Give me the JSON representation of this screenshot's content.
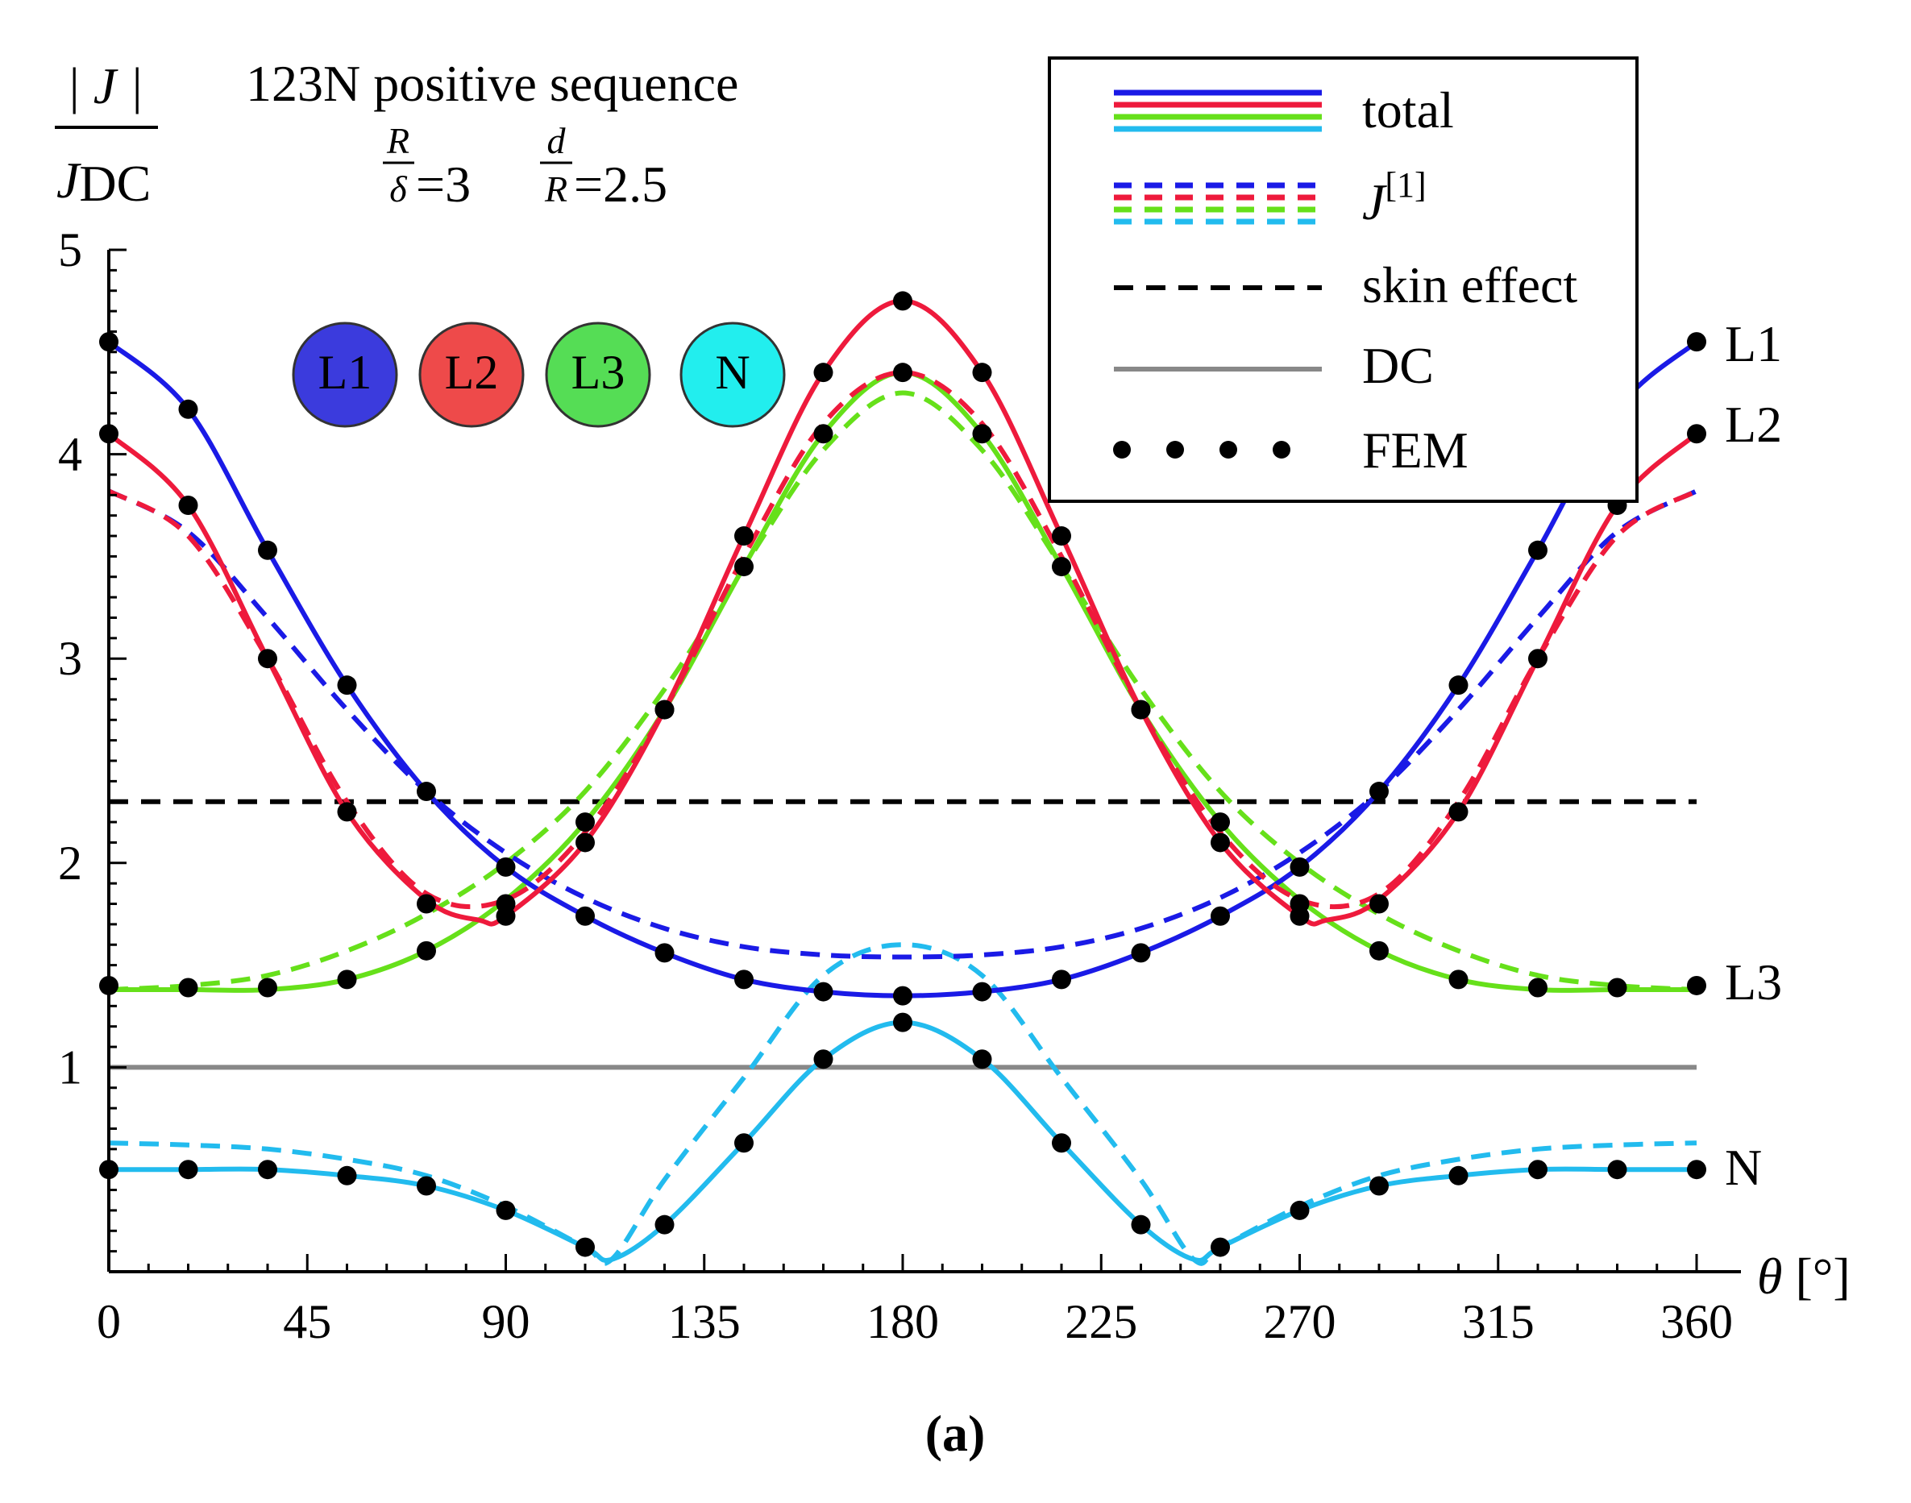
{
  "figure_label": "(a)",
  "chart_data": {
    "type": "line",
    "title": "123N positive sequence",
    "ylabel_num": "| J |",
    "ylabel_den": "J",
    "ylabel_den_sub": "DC",
    "params": {
      "r_num": "R",
      "r_den": "δ",
      "r_val": "=3",
      "d_num": "d",
      "d_den": "R",
      "d_val": "=2.5"
    },
    "xlabel_sym": "θ",
    "xlabel_unit": "[°]",
    "xlim": [
      0,
      360
    ],
    "ylim": [
      0,
      5
    ],
    "xticks": [
      "0",
      "45",
      "90",
      "135",
      "180",
      "225",
      "270",
      "315",
      "360"
    ],
    "yticks": [
      "1",
      "2",
      "3",
      "4",
      "5"
    ],
    "conductors": [
      "L1",
      "L2",
      "L3",
      "N"
    ],
    "colors": {
      "L1": "#1a1ae6",
      "L2": "#ee1a3c",
      "L3": "#66e01a",
      "N": "#22bbee",
      "skin": "#000000",
      "dc": "#888888",
      "fem": "#000000"
    },
    "legend": {
      "position": "top-right",
      "entries": [
        "total",
        "J",
        "skin effect",
        "DC",
        "FEM"
      ],
      "j_superscript": "[1]"
    },
    "end_labels": [
      "L1",
      "L2",
      "L3",
      "N"
    ],
    "skin_effect": 2.3,
    "dc": 1.0,
    "series": [
      {
        "name": "L1 total",
        "conductor": "L1",
        "style": "solid",
        "x": [
          0,
          18,
          36,
          54,
          72,
          90,
          108,
          126,
          144,
          162,
          180,
          198,
          216,
          234,
          252,
          270,
          288,
          306,
          324,
          342,
          360
        ],
        "y": [
          4.55,
          4.22,
          3.53,
          2.87,
          2.35,
          1.98,
          1.74,
          1.56,
          1.43,
          1.37,
          1.35,
          1.37,
          1.43,
          1.56,
          1.74,
          1.98,
          2.35,
          2.87,
          3.53,
          4.22,
          4.55
        ]
      },
      {
        "name": "L1 J[1]",
        "conductor": "L1",
        "style": "dashed",
        "x": [
          0,
          18,
          36,
          54,
          72,
          90,
          108,
          126,
          144,
          162,
          180,
          198,
          216,
          234,
          252,
          270,
          288,
          306,
          324,
          342,
          360
        ],
        "y": [
          3.82,
          3.62,
          3.2,
          2.75,
          2.35,
          2.05,
          1.83,
          1.68,
          1.59,
          1.55,
          1.54,
          1.55,
          1.59,
          1.68,
          1.83,
          2.05,
          2.35,
          2.75,
          3.2,
          3.62,
          3.82
        ]
      },
      {
        "name": "L2 total",
        "conductor": "L2",
        "style": "solid",
        "x": [
          0,
          18,
          36,
          54,
          72,
          84,
          90,
          108,
          126,
          144,
          162,
          180,
          198,
          216,
          234,
          252,
          270,
          276,
          288,
          306,
          324,
          342,
          360
        ],
        "y": [
          4.1,
          3.75,
          3.0,
          2.25,
          1.82,
          1.72,
          1.74,
          2.1,
          2.75,
          3.6,
          4.4,
          4.75,
          4.4,
          3.6,
          2.75,
          2.1,
          1.74,
          1.72,
          1.82,
          2.25,
          3.0,
          3.75,
          4.1
        ]
      },
      {
        "name": "L2 J[1]",
        "conductor": "L2",
        "style": "dashed",
        "x": [
          0,
          18,
          36,
          54,
          72,
          90,
          108,
          126,
          144,
          162,
          180,
          198,
          216,
          234,
          252,
          270,
          288,
          306,
          324,
          342,
          360
        ],
        "y": [
          3.82,
          3.6,
          3.0,
          2.3,
          1.85,
          1.82,
          2.15,
          2.75,
          3.5,
          4.15,
          4.4,
          4.15,
          3.5,
          2.75,
          2.15,
          1.82,
          1.85,
          2.3,
          3.0,
          3.6,
          3.82
        ]
      },
      {
        "name": "L3 total",
        "conductor": "L3",
        "style": "solid",
        "x": [
          0,
          18,
          36,
          54,
          72,
          90,
          108,
          126,
          144,
          162,
          180,
          198,
          216,
          234,
          252,
          270,
          288,
          306,
          324,
          342,
          360
        ],
        "y": [
          1.38,
          1.38,
          1.38,
          1.43,
          1.57,
          1.82,
          2.2,
          2.75,
          3.45,
          4.1,
          4.4,
          4.1,
          3.45,
          2.75,
          2.2,
          1.82,
          1.57,
          1.43,
          1.38,
          1.38,
          1.38
        ]
      },
      {
        "name": "L3 J[1]",
        "conductor": "L3",
        "style": "dashed",
        "x": [
          0,
          18,
          36,
          54,
          72,
          90,
          108,
          126,
          144,
          162,
          180,
          198,
          216,
          234,
          252,
          270,
          288,
          306,
          324,
          342,
          360
        ],
        "y": [
          1.38,
          1.4,
          1.45,
          1.57,
          1.75,
          2.0,
          2.35,
          2.85,
          3.45,
          4.02,
          4.3,
          4.02,
          3.45,
          2.85,
          2.35,
          2.0,
          1.75,
          1.57,
          1.45,
          1.4,
          1.38
        ]
      },
      {
        "name": "N total",
        "conductor": "N",
        "style": "solid",
        "x": [
          0,
          18,
          36,
          54,
          72,
          90,
          108,
          114,
          126,
          144,
          162,
          180,
          198,
          216,
          234,
          246,
          252,
          270,
          288,
          306,
          324,
          342,
          360
        ],
        "y": [
          0.5,
          0.5,
          0.5,
          0.47,
          0.42,
          0.3,
          0.12,
          0.06,
          0.23,
          0.63,
          1.04,
          1.22,
          1.04,
          0.63,
          0.23,
          0.06,
          0.12,
          0.3,
          0.42,
          0.47,
          0.5,
          0.5,
          0.5
        ]
      },
      {
        "name": "N J[1]",
        "conductor": "N",
        "style": "dashed",
        "x": [
          0,
          18,
          36,
          54,
          72,
          90,
          108,
          114,
          126,
          144,
          162,
          180,
          198,
          216,
          234,
          246,
          252,
          270,
          288,
          306,
          324,
          342,
          360
        ],
        "y": [
          0.63,
          0.62,
          0.6,
          0.55,
          0.47,
          0.32,
          0.12,
          0.06,
          0.45,
          0.95,
          1.45,
          1.6,
          1.45,
          0.95,
          0.45,
          0.06,
          0.12,
          0.32,
          0.47,
          0.55,
          0.6,
          0.62,
          0.63
        ]
      }
    ],
    "fem_points": [
      {
        "conductor": "L1",
        "x": [
          0,
          18,
          36,
          54,
          72,
          90,
          108,
          126,
          144,
          162,
          180,
          198,
          216,
          234,
          252,
          270,
          288,
          306,
          324,
          342,
          360
        ],
        "y": [
          4.55,
          4.22,
          3.53,
          2.87,
          2.35,
          1.98,
          1.74,
          1.56,
          1.43,
          1.37,
          1.35,
          1.37,
          1.43,
          1.56,
          1.74,
          1.98,
          2.35,
          2.87,
          3.53,
          4.22,
          4.55
        ]
      },
      {
        "conductor": "L2",
        "x": [
          0,
          18,
          36,
          54,
          72,
          90,
          108,
          126,
          144,
          162,
          180,
          198,
          216,
          234,
          252,
          270,
          288,
          306,
          324,
          342,
          360
        ],
        "y": [
          4.1,
          3.75,
          3.0,
          2.25,
          1.8,
          1.74,
          2.1,
          2.75,
          3.6,
          4.4,
          4.75,
          4.4,
          3.6,
          2.75,
          2.1,
          1.74,
          1.8,
          2.25,
          3.0,
          3.75,
          4.1
        ]
      },
      {
        "conductor": "L3",
        "x": [
          0,
          18,
          36,
          54,
          72,
          90,
          108,
          126,
          144,
          162,
          180,
          198,
          216,
          234,
          252,
          270,
          288,
          306,
          324,
          342,
          360
        ],
        "y": [
          1.4,
          1.39,
          1.39,
          1.43,
          1.57,
          1.8,
          2.2,
          2.75,
          3.45,
          4.1,
          4.4,
          4.1,
          3.45,
          2.75,
          2.2,
          1.8,
          1.57,
          1.43,
          1.39,
          1.39,
          1.4
        ]
      },
      {
        "conductor": "N",
        "x": [
          0,
          18,
          36,
          54,
          72,
          90,
          108,
          126,
          144,
          162,
          180,
          198,
          216,
          234,
          252,
          270,
          288,
          306,
          324,
          342,
          360
        ],
        "y": [
          0.5,
          0.5,
          0.5,
          0.47,
          0.42,
          0.3,
          0.12,
          0.23,
          0.63,
          1.04,
          1.22,
          1.04,
          0.63,
          0.23,
          0.12,
          0.3,
          0.42,
          0.47,
          0.5,
          0.5,
          0.5
        ]
      }
    ]
  }
}
